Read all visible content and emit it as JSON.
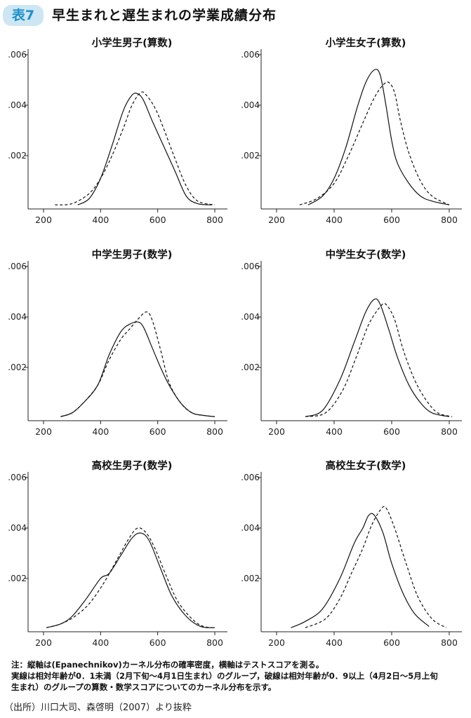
{
  "figure": {
    "badge": "表7",
    "title": "早生まれと遅生まれの学業成績分布"
  },
  "chart_data": [
    {
      "type": "line",
      "title": "小学生男子(算数)",
      "xlim": [
        200,
        800
      ],
      "ylim": [
        0,
        0.006
      ],
      "x_ticks": [
        "200",
        "400",
        "600",
        "800"
      ],
      "y_ticks": [
        ".002",
        ".004",
        ".006"
      ],
      "series": [
        {
          "style": "solid",
          "x": [
            320,
            360,
            400,
            440,
            480,
            510,
            530,
            550,
            580,
            620,
            660,
            700,
            740,
            790
          ],
          "y": [
            5e-05,
            0.0003,
            0.0011,
            0.0024,
            0.0038,
            0.0044,
            0.00445,
            0.0042,
            0.0034,
            0.0024,
            0.0014,
            0.0004,
            0.0001,
            5e-05
          ]
        },
        {
          "style": "dashed",
          "x": [
            240,
            300,
            360,
            400,
            440,
            480,
            510,
            540,
            560,
            590,
            620,
            660,
            700,
            740,
            800
          ],
          "y": [
            5e-05,
            0.0001,
            0.0005,
            0.0011,
            0.002,
            0.0031,
            0.004,
            0.0045,
            0.0044,
            0.0039,
            0.0031,
            0.0019,
            0.0008,
            0.0002,
            5e-05
          ]
        }
      ]
    },
    {
      "type": "line",
      "title": "小学生女子(算数)",
      "xlim": [
        200,
        800
      ],
      "ylim": [
        0,
        0.006
      ],
      "x_ticks": [
        "200",
        "400",
        "600",
        "800"
      ],
      "y_ticks": [
        ".002",
        ".004",
        ".006"
      ],
      "series": [
        {
          "style": "solid",
          "x": [
            310,
            360,
            400,
            440,
            480,
            510,
            540,
            560,
            580,
            600,
            620,
            660,
            700,
            740,
            800
          ],
          "y": [
            5e-05,
            0.0004,
            0.0011,
            0.0023,
            0.0039,
            0.0049,
            0.0054,
            0.0052,
            0.004,
            0.0026,
            0.0017,
            0.0009,
            0.0004,
            0.0002,
            5e-05
          ]
        },
        {
          "style": "dashed",
          "x": [
            280,
            340,
            400,
            450,
            500,
            540,
            570,
            590,
            610,
            630,
            660,
            700,
            740,
            800
          ],
          "y": [
            5e-05,
            0.0003,
            0.0009,
            0.002,
            0.0033,
            0.0043,
            0.0048,
            0.0049,
            0.0045,
            0.0034,
            0.0021,
            0.001,
            0.0004,
            5e-05
          ]
        }
      ]
    },
    {
      "type": "line",
      "title": "中学生男子(数学)",
      "xlim": [
        200,
        800
      ],
      "ylim": [
        0,
        0.006
      ],
      "x_ticks": [
        "200",
        "400",
        "600",
        "800"
      ],
      "y_ticks": [
        ".002",
        ".004",
        ".006"
      ],
      "series": [
        {
          "style": "solid",
          "x": [
            260,
            300,
            340,
            390,
            430,
            470,
            500,
            530,
            550,
            580,
            610,
            640,
            680,
            720,
            760,
            800
          ],
          "y": [
            5e-05,
            0.0002,
            0.0006,
            0.0013,
            0.0025,
            0.0034,
            0.0037,
            0.0038,
            0.0036,
            0.0028,
            0.002,
            0.0013,
            0.0006,
            0.0002,
            0.0001,
            5e-05
          ]
        },
        {
          "style": "dashed",
          "x": [
            260,
            300,
            340,
            390,
            430,
            470,
            500,
            530,
            560,
            580,
            610,
            640,
            680,
            720,
            760,
            800
          ],
          "y": [
            5e-05,
            0.0002,
            0.0006,
            0.0013,
            0.0023,
            0.0031,
            0.0035,
            0.0039,
            0.0042,
            0.0039,
            0.0027,
            0.0014,
            0.0006,
            0.0002,
            0.0001,
            5e-05
          ]
        }
      ]
    },
    {
      "type": "line",
      "title": "中学生女子(数学)",
      "xlim": [
        200,
        800
      ],
      "ylim": [
        0,
        0.006
      ],
      "x_ticks": [
        "200",
        "400",
        "600",
        "800"
      ],
      "y_ticks": [
        ".002",
        ".004",
        ".006"
      ],
      "series": [
        {
          "style": "solid",
          "x": [
            300,
            360,
            420,
            470,
            510,
            540,
            560,
            590,
            620,
            660,
            700,
            740,
            800
          ],
          "y": [
            5e-05,
            0.0003,
            0.0015,
            0.003,
            0.0042,
            0.0047,
            0.0045,
            0.0035,
            0.0024,
            0.0013,
            0.0006,
            0.0002,
            5e-05
          ]
        },
        {
          "style": "dashed",
          "x": [
            300,
            370,
            430,
            480,
            520,
            560,
            580,
            610,
            640,
            680,
            720,
            760,
            810
          ],
          "y": [
            5e-05,
            0.0002,
            0.0011,
            0.0025,
            0.0037,
            0.0044,
            0.0045,
            0.0039,
            0.0027,
            0.0015,
            0.0007,
            0.0002,
            5e-05
          ]
        }
      ]
    },
    {
      "type": "line",
      "title": "高校生男子(数学)",
      "xlim": [
        200,
        800
      ],
      "ylim": [
        0,
        0.006
      ],
      "x_ticks": [
        "200",
        "400",
        "600",
        "800"
      ],
      "y_ticks": [
        ".002",
        ".004",
        ".006"
      ],
      "series": [
        {
          "style": "solid",
          "x": [
            210,
            260,
            300,
            350,
            400,
            430,
            470,
            510,
            540,
            570,
            610,
            650,
            700,
            750,
            800
          ],
          "y": [
            5e-05,
            0.0002,
            0.0005,
            0.0012,
            0.002,
            0.0022,
            0.0029,
            0.0036,
            0.0038,
            0.0035,
            0.0024,
            0.0013,
            0.0005,
            0.0001,
            5e-05
          ]
        },
        {
          "style": "dashed",
          "x": [
            210,
            260,
            310,
            360,
            410,
            460,
            500,
            530,
            560,
            590,
            630,
            670,
            720,
            760,
            800
          ],
          "y": [
            5e-05,
            0.0002,
            0.0005,
            0.001,
            0.0018,
            0.0028,
            0.0036,
            0.004,
            0.0038,
            0.0032,
            0.0021,
            0.0011,
            0.0004,
            0.0001,
            5e-05
          ]
        }
      ]
    },
    {
      "type": "line",
      "title": "高校生女子(数学)",
      "xlim": [
        200,
        800
      ],
      "ylim": [
        0,
        0.006
      ],
      "x_ticks": [
        "200",
        "400",
        "600",
        "800"
      ],
      "y_ticks": [
        ".002",
        ".004",
        ".006"
      ],
      "series": [
        {
          "style": "solid",
          "x": [
            250,
            300,
            360,
            420,
            470,
            500,
            520,
            540,
            570,
            600,
            640,
            680,
            730
          ],
          "y": [
            5e-05,
            0.0003,
            0.0008,
            0.002,
            0.0034,
            0.004,
            0.0045,
            0.0045,
            0.0038,
            0.0026,
            0.0014,
            0.0006,
            0.0001
          ]
        },
        {
          "style": "dashed",
          "x": [
            300,
            370,
            420,
            460,
            500,
            530,
            560,
            580,
            610,
            650,
            690,
            740,
            790
          ],
          "y": [
            5e-05,
            0.0004,
            0.0012,
            0.0022,
            0.0032,
            0.0041,
            0.0047,
            0.0048,
            0.004,
            0.0026,
            0.0013,
            0.0004,
            5e-05
          ]
        }
      ]
    }
  ],
  "notes": [
    "注：縦軸は(Epanechnikov)カーネル分布の確率密度，横軸はテストスコアを測る。",
    "実線は相対年齢が0．1未満（2月下旬～4月1日生まれ）のグループ，破線は相対年齢が0．9以上（4月2日～5月上旬",
    "生まれ）のグループの算数・数学スコアについてのカーネル分布を示す。"
  ],
  "source": "（出所）川口大司、森啓明（2007）より抜粋"
}
